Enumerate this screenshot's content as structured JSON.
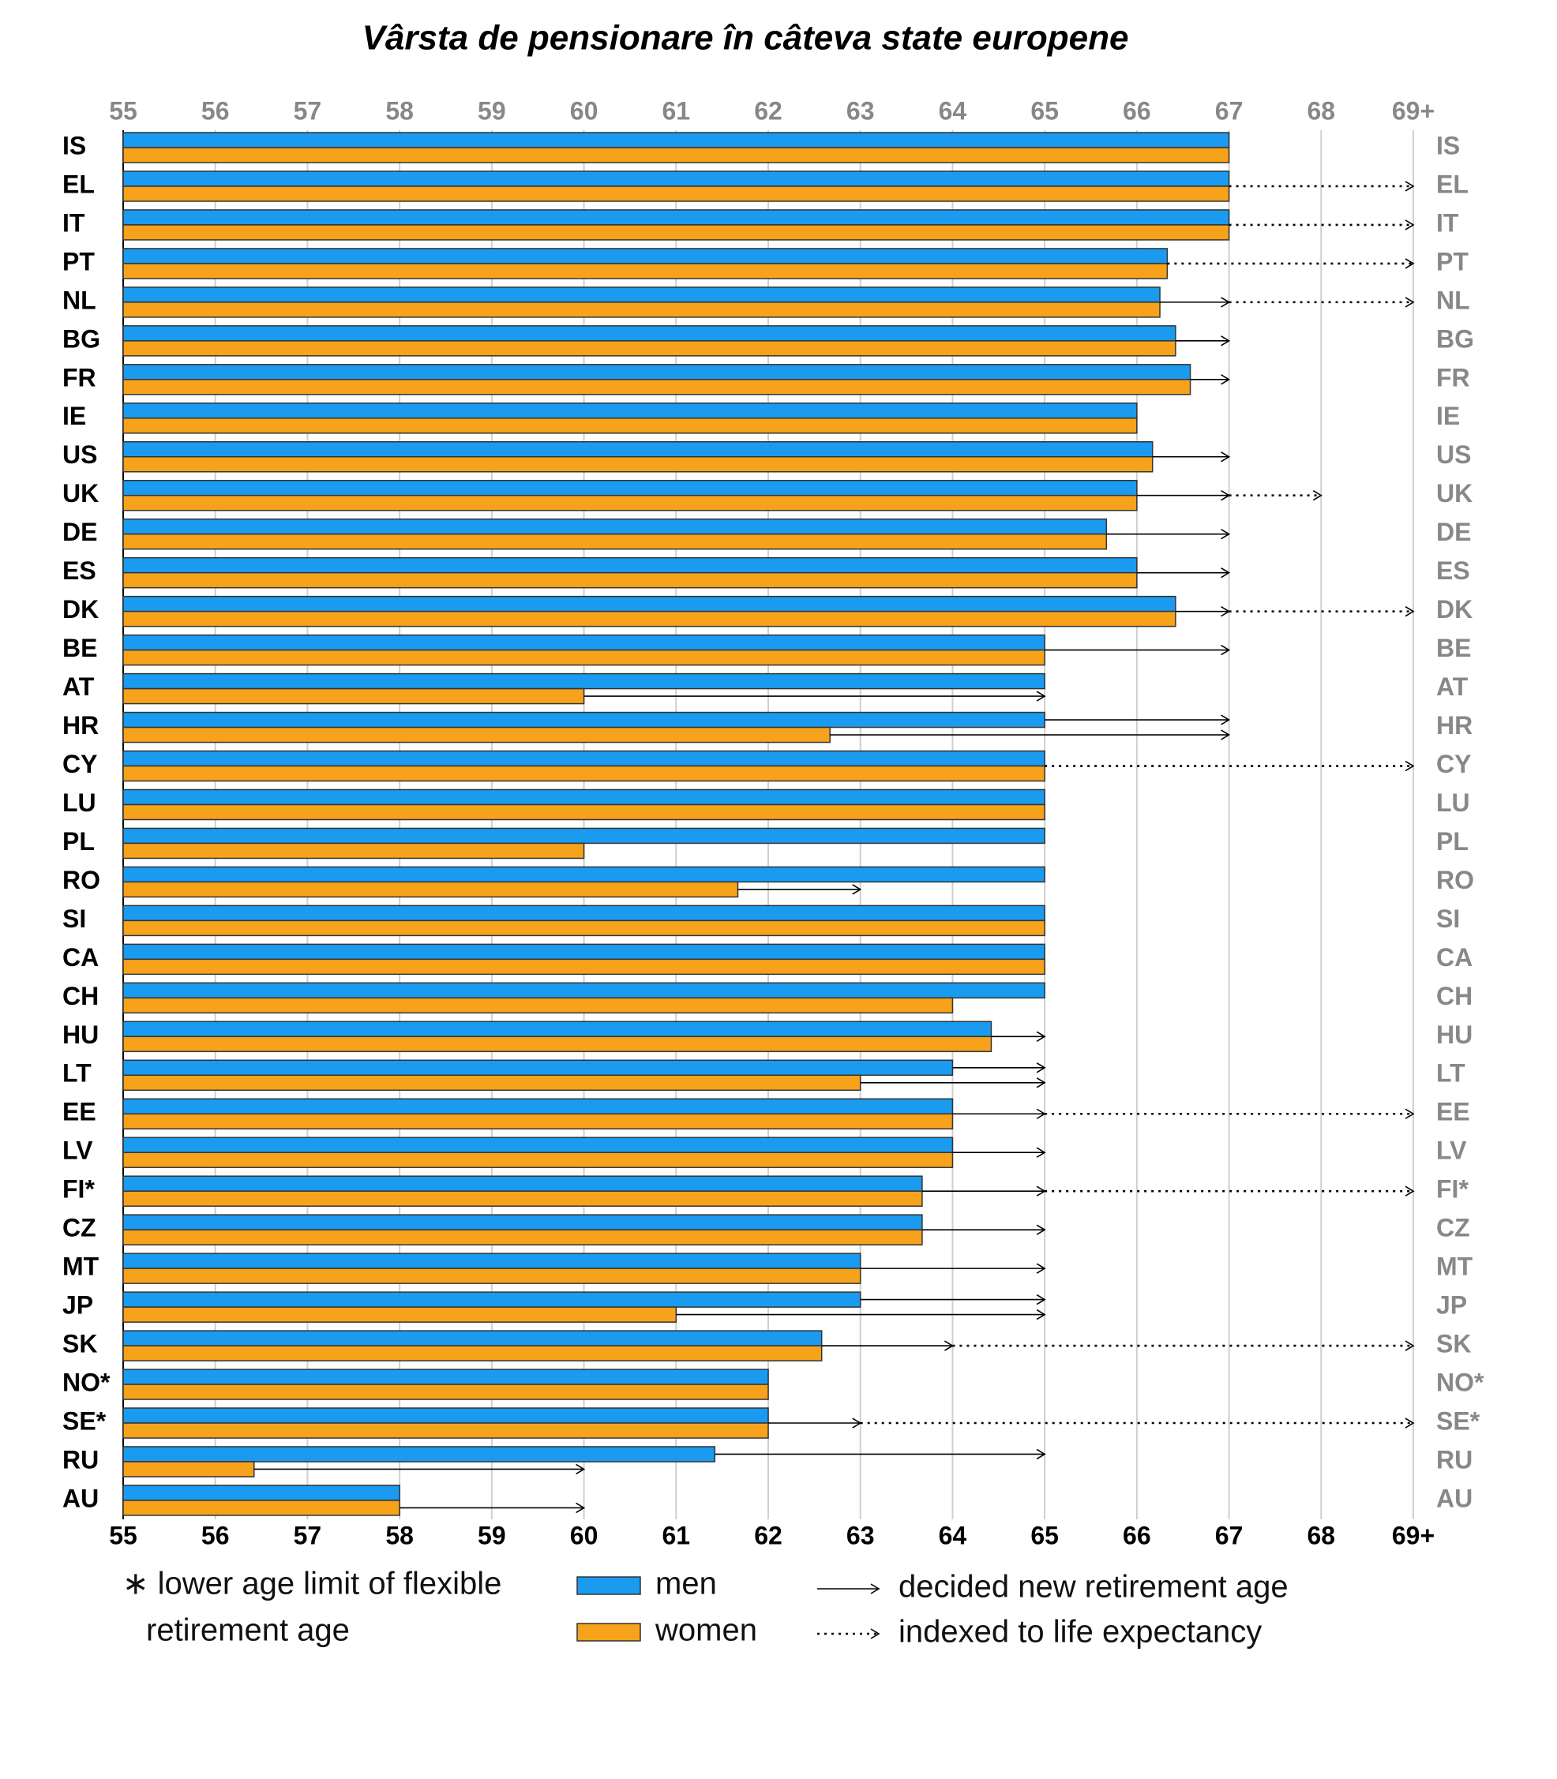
{
  "chart_data": {
    "type": "bar",
    "orientation": "horizontal",
    "title": "Vârsta de pensionare în câteva state europene",
    "categories": [
      "IS",
      "EL",
      "IT",
      "PT",
      "NL",
      "BG",
      "FR",
      "IE",
      "US",
      "UK",
      "DE",
      "ES",
      "DK",
      "BE",
      "AT",
      "HR",
      "CY",
      "LU",
      "PL",
      "RO",
      "SI",
      "CA",
      "CH",
      "HU",
      "LT",
      "EE",
      "LV",
      "FI*",
      "CZ",
      "MT",
      "JP",
      "SK",
      "NO*",
      "SE*",
      "RU",
      "AU"
    ],
    "series": [
      {
        "name": "men",
        "color": "#1a9bef",
        "values": [
          67,
          67,
          67,
          66.33,
          66.25,
          66.42,
          66.58,
          66,
          66.17,
          66,
          65.67,
          66,
          66.42,
          65,
          65,
          65,
          65,
          65,
          65,
          65,
          65,
          65,
          65,
          64.42,
          64,
          64,
          64,
          63.67,
          63.67,
          63,
          63,
          62.58,
          62,
          62,
          61.42,
          58
        ]
      },
      {
        "name": "women",
        "color": "#f7a21b",
        "values": [
          67,
          67,
          67,
          66.33,
          66.25,
          66.42,
          66.58,
          66,
          66.17,
          66,
          65.67,
          66,
          66.42,
          65,
          60,
          62.67,
          65,
          65,
          60,
          61.67,
          65,
          65,
          64,
          64.42,
          63,
          64,
          64,
          63.67,
          63.67,
          63,
          61,
          62.58,
          62,
          62,
          56.42,
          58
        ]
      }
    ],
    "arrows": [
      {
        "name": "decided new retirement age",
        "style": "solid",
        "men": [
          null,
          null,
          null,
          null,
          67,
          67,
          67,
          null,
          67,
          67,
          67,
          67,
          67,
          67,
          null,
          67,
          null,
          null,
          null,
          null,
          null,
          null,
          null,
          65,
          65,
          65,
          65,
          65,
          65,
          65,
          65,
          64,
          null,
          63,
          65,
          null
        ],
        "women": [
          null,
          null,
          null,
          null,
          67,
          67,
          67,
          null,
          67,
          67,
          67,
          67,
          67,
          67,
          65,
          67,
          null,
          null,
          null,
          63,
          null,
          null,
          null,
          65,
          65,
          65,
          65,
          65,
          65,
          65,
          65,
          64,
          null,
          63,
          60,
          60
        ]
      },
      {
        "name": "indexed to life expectancy",
        "style": "dotted",
        "values": [
          null,
          69,
          69,
          69,
          69,
          null,
          null,
          null,
          null,
          68,
          null,
          null,
          69,
          null,
          null,
          null,
          69,
          null,
          null,
          null,
          null,
          null,
          null,
          null,
          null,
          69,
          null,
          69,
          null,
          null,
          null,
          69,
          null,
          69,
          null,
          null
        ]
      }
    ],
    "footnote": [
      "∗ lower age limit of flexible",
      "retirement age"
    ],
    "xlim": [
      55,
      69
    ],
    "xticks": [
      55,
      56,
      57,
      58,
      59,
      60,
      61,
      62,
      63,
      64,
      65,
      66,
      67,
      68,
      {
        "value": 69,
        "label": "69+"
      }
    ],
    "grid": true
  }
}
